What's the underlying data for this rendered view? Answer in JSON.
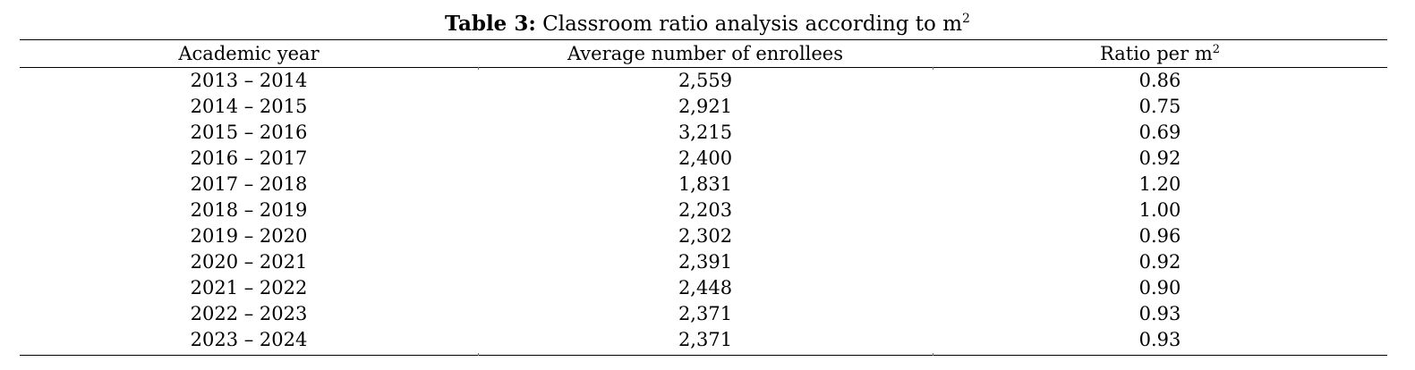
{
  "caption": {
    "label": "Table 3:",
    "text": "Classroom ratio analysis according to m",
    "superscript": "2"
  },
  "table": {
    "columns": [
      {
        "label": "Academic year",
        "superscript": ""
      },
      {
        "label": "Average number of enrollees",
        "superscript": ""
      },
      {
        "label": "Ratio per m",
        "superscript": "2"
      }
    ],
    "rows": [
      {
        "year": "2013 – 2014",
        "enrollees": "2,559",
        "ratio": "0.86"
      },
      {
        "year": "2014 – 2015",
        "enrollees": "2,921",
        "ratio": "0.75"
      },
      {
        "year": "2015 – 2016",
        "enrollees": "3,215",
        "ratio": "0.69"
      },
      {
        "year": "2016 – 2017",
        "enrollees": "2,400",
        "ratio": "0.92"
      },
      {
        "year": "2017 – 2018",
        "enrollees": "1,831",
        "ratio": "1.20"
      },
      {
        "year": "2018 – 2019",
        "enrollees": "2,203",
        "ratio": "1.00"
      },
      {
        "year": "2019 – 2020",
        "enrollees": "2,302",
        "ratio": "0.96"
      },
      {
        "year": "2020 – 2021",
        "enrollees": "2,391",
        "ratio": "0.92"
      },
      {
        "year": "2021 – 2022",
        "enrollees": "2,448",
        "ratio": "0.90"
      },
      {
        "year": "2022 – 2023",
        "enrollees": "2,371",
        "ratio": "0.93"
      },
      {
        "year": "2023 – 2024",
        "enrollees": "2,371",
        "ratio": "0.93"
      }
    ]
  }
}
